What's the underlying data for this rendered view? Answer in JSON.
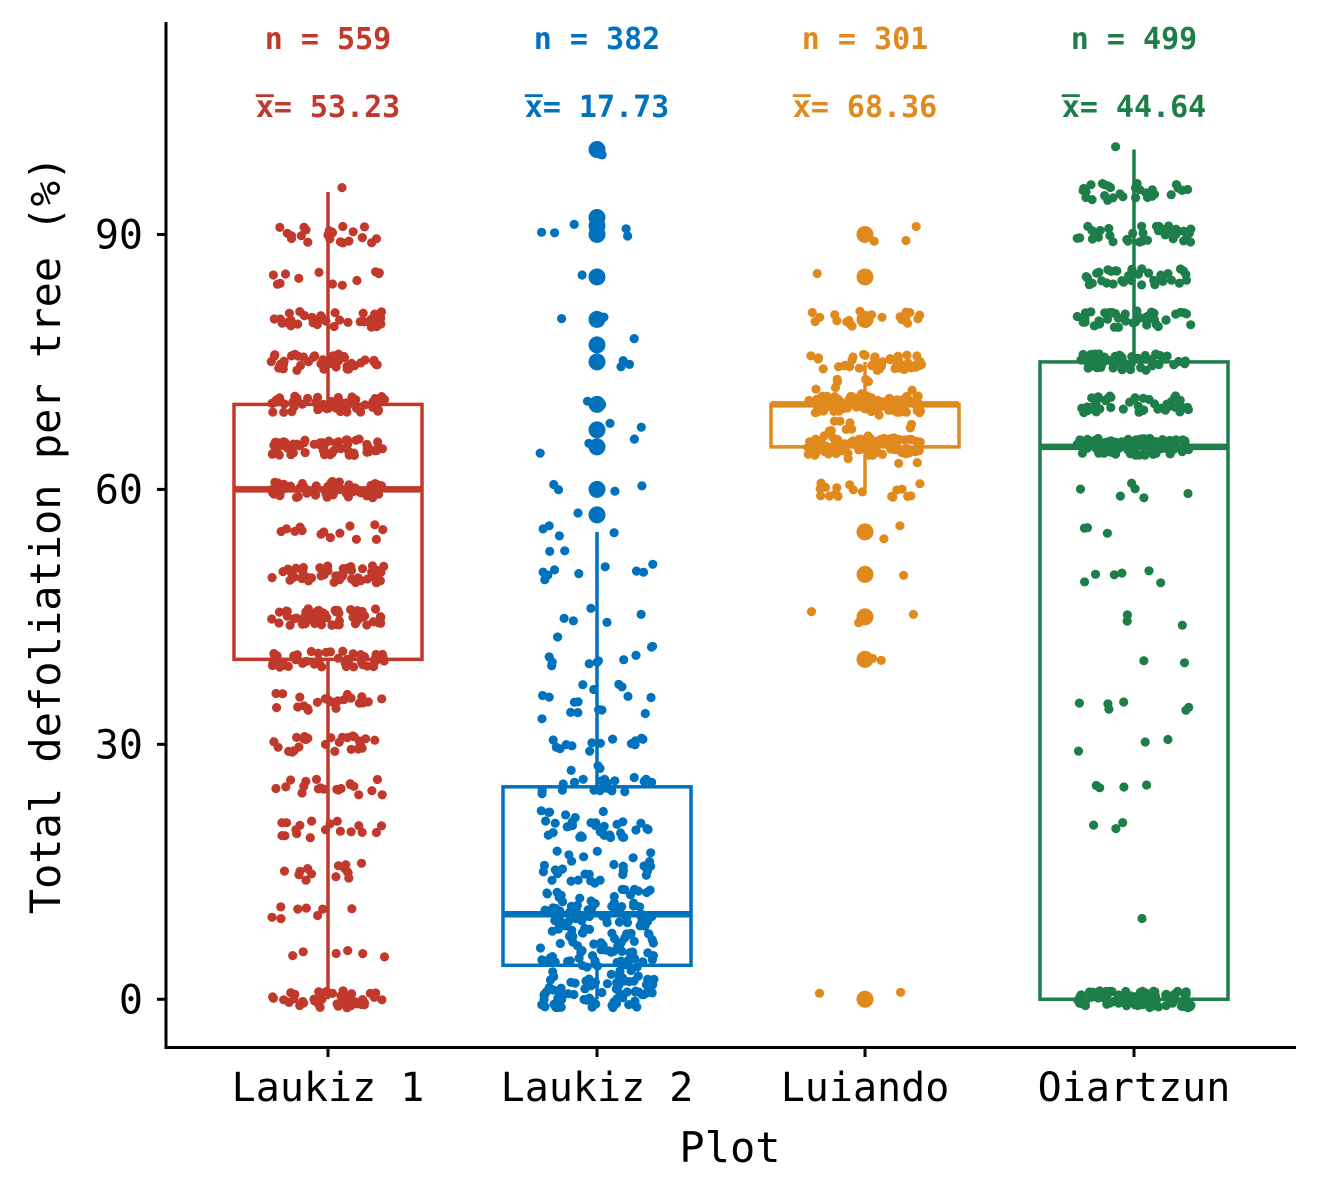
{
  "chart_data": {
    "type": "boxplot",
    "xlabel": "Plot",
    "ylabel": "Total defoliation per tree (%)",
    "ylim": [
      -5.5,
      115
    ],
    "yticks": [
      0,
      30,
      60,
      90
    ],
    "grid": false,
    "legend": "none",
    "groups": [
      {
        "name": "Laukiz 1",
        "color": "#c0392b",
        "n_label": "n = 559",
        "mean_symbol": "x̅",
        "mean_label": "= 53.23",
        "n": 559,
        "mean": 53.23,
        "box": {
          "q1": 40,
          "median": 60,
          "q3": 70,
          "whisker_low": 0,
          "whisker_high": 95
        },
        "levels": [
          [
            0,
            45
          ],
          [
            5,
            6
          ],
          [
            10,
            8
          ],
          [
            15,
            14
          ],
          [
            20,
            18
          ],
          [
            25,
            20
          ],
          [
            30,
            26
          ],
          [
            35,
            22
          ],
          [
            40,
            45
          ],
          [
            45,
            55
          ],
          [
            50,
            50
          ],
          [
            55,
            14
          ],
          [
            60,
            55
          ],
          [
            65,
            60
          ],
          [
            70,
            55
          ],
          [
            75,
            42
          ],
          [
            80,
            38
          ],
          [
            85,
            12
          ],
          [
            90,
            22
          ],
          [
            95,
            1
          ]
        ]
      },
      {
        "name": "Laukiz 2",
        "color": "#0072bd",
        "n_label": "n = 382",
        "mean_symbol": "x̅",
        "mean_label": "= 17.73",
        "n": 382,
        "mean": 17.73,
        "box": {
          "q1": 4,
          "median": 10,
          "q3": 25,
          "whisker_low": 0,
          "whisker_high": 55
        },
        "levels": [
          [
            0,
            40
          ],
          [
            1,
            12
          ],
          [
            2,
            14
          ],
          [
            3,
            14
          ],
          [
            4,
            12
          ],
          [
            5,
            20
          ],
          [
            6,
            12
          ],
          [
            7,
            12
          ],
          [
            8,
            12
          ],
          [
            9,
            10
          ],
          [
            10,
            30
          ],
          [
            11,
            10
          ],
          [
            12,
            14
          ],
          [
            13,
            8
          ],
          [
            15,
            18
          ],
          [
            17,
            8
          ],
          [
            20,
            30
          ],
          [
            22,
            6
          ],
          [
            25,
            20
          ],
          [
            27,
            4
          ],
          [
            30,
            14
          ],
          [
            33,
            4
          ],
          [
            35,
            8
          ],
          [
            37,
            4
          ],
          [
            40,
            8
          ],
          [
            42,
            3
          ],
          [
            45,
            5
          ],
          [
            50,
            8
          ],
          [
            52,
            3
          ],
          [
            55,
            4
          ]
        ],
        "outliers": [
          [
            57,
            2
          ],
          [
            60,
            5
          ],
          [
            65,
            4
          ],
          [
            67,
            3
          ],
          [
            70,
            3
          ],
          [
            75,
            4
          ],
          [
            77,
            2
          ],
          [
            80,
            3
          ],
          [
            85,
            2
          ],
          [
            90,
            4
          ],
          [
            91,
            2
          ],
          [
            92,
            2
          ],
          [
            100,
            3
          ]
        ]
      },
      {
        "name": "Luiando",
        "color": "#e08a1e",
        "n_label": "n = 301",
        "mean_symbol": "x̅",
        "mean_label": "= 68.36",
        "n": 301,
        "mean": 68.36,
        "box": {
          "q1": 65,
          "median": 70,
          "q3": 70,
          "whisker_low": 60,
          "whisker_high": 75
        },
        "levels": [
          [
            60,
            18
          ],
          [
            64,
            10
          ],
          [
            65,
            75
          ],
          [
            66,
            10
          ],
          [
            68,
            8
          ],
          [
            70,
            80
          ],
          [
            72,
            8
          ],
          [
            75,
            45
          ]
        ],
        "outliers": [
          [
            0,
            3
          ],
          [
            40,
            3
          ],
          [
            45,
            4
          ],
          [
            50,
            4
          ],
          [
            55,
            3
          ],
          [
            80,
            22
          ],
          [
            85,
            2
          ],
          [
            90,
            4
          ]
        ]
      },
      {
        "name": "Oiartzun",
        "color": "#1e7e4a",
        "n_label": "n = 499",
        "mean_symbol": "x̅",
        "mean_label": "= 44.64",
        "n": 499,
        "mean": 44.64,
        "box": {
          "q1": 0,
          "median": 65,
          "q3": 75,
          "whisker_low": 0,
          "whisker_high": 100
        },
        "levels": [
          [
            0,
            110
          ],
          [
            10,
            1
          ],
          [
            20,
            3
          ],
          [
            25,
            4
          ],
          [
            30,
            3
          ],
          [
            35,
            6
          ],
          [
            40,
            2
          ],
          [
            45,
            3
          ],
          [
            50,
            6
          ],
          [
            55,
            3
          ],
          [
            60,
            6
          ],
          [
            65,
            85
          ],
          [
            70,
            45
          ],
          [
            75,
            50
          ],
          [
            80,
            40
          ],
          [
            85,
            35
          ],
          [
            90,
            38
          ],
          [
            95,
            30
          ],
          [
            100,
            1
          ]
        ]
      }
    ]
  }
}
